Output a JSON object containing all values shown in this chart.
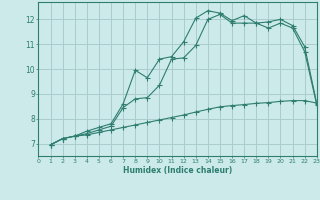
{
  "xlabel": "Humidex (Indice chaleur)",
  "bg_color": "#cceaea",
  "grid_color": "#aacccc",
  "line_color": "#2e7d6e",
  "xlim": [
    0,
    23
  ],
  "ylim": [
    6.5,
    12.7
  ],
  "xticks": [
    0,
    1,
    2,
    3,
    4,
    5,
    6,
    7,
    8,
    9,
    10,
    11,
    12,
    13,
    14,
    15,
    16,
    17,
    18,
    19,
    20,
    21,
    22,
    23
  ],
  "yticks": [
    7,
    8,
    9,
    10,
    11,
    12
  ],
  "line1_x": [
    1,
    2,
    3,
    4,
    5,
    6,
    7,
    8,
    9,
    10,
    11,
    12,
    13,
    14,
    15,
    16,
    17,
    18,
    19,
    20,
    21,
    22,
    23
  ],
  "line1_y": [
    6.95,
    7.2,
    7.3,
    7.5,
    7.65,
    7.8,
    8.6,
    9.95,
    9.65,
    10.4,
    10.5,
    11.1,
    12.05,
    12.35,
    12.25,
    11.95,
    12.15,
    11.85,
    11.9,
    12.0,
    11.75,
    10.9,
    8.6
  ],
  "line2_x": [
    1,
    2,
    3,
    4,
    5,
    6,
    7,
    8,
    9,
    10,
    11,
    12,
    13,
    14,
    15,
    16,
    17,
    18,
    19,
    20,
    21,
    22,
    23
  ],
  "line2_y": [
    6.95,
    7.2,
    7.3,
    7.4,
    7.55,
    7.7,
    8.45,
    8.8,
    8.85,
    9.35,
    10.4,
    10.45,
    10.95,
    12.0,
    12.2,
    11.85,
    11.85,
    11.85,
    11.65,
    11.85,
    11.65,
    10.7,
    8.55
  ],
  "line3_x": [
    1,
    2,
    3,
    4,
    5,
    6,
    7,
    8,
    9,
    10,
    11,
    12,
    13,
    14,
    15,
    16,
    17,
    18,
    19,
    20,
    21,
    22,
    23
  ],
  "line3_y": [
    6.95,
    7.2,
    7.3,
    7.35,
    7.45,
    7.55,
    7.65,
    7.75,
    7.85,
    7.95,
    8.05,
    8.15,
    8.27,
    8.38,
    8.48,
    8.53,
    8.57,
    8.62,
    8.65,
    8.7,
    8.73,
    8.73,
    8.63
  ]
}
